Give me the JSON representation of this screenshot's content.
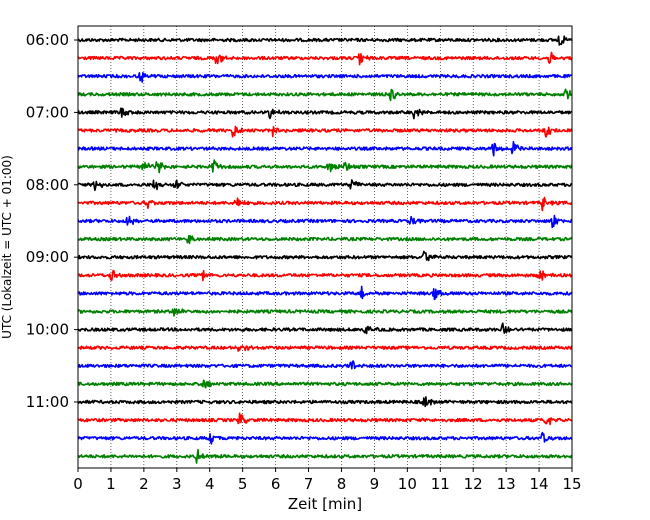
{
  "chart_data": {
    "type": "line",
    "title": "",
    "xlabel": "Zeit  [min]",
    "ylabel": "UTC (Lokalzeit = UTC + 01:00)",
    "xlim": [
      0,
      15
    ],
    "x_ticks": [
      "0",
      "1",
      "2",
      "3",
      "4",
      "5",
      "6",
      "7",
      "8",
      "9",
      "10",
      "11",
      "12",
      "13",
      "14",
      "15"
    ],
    "y_ticks": [
      "06:00",
      "07:00",
      "08:00",
      "09:00",
      "10:00",
      "11:00"
    ],
    "grid": "vertical dotted at each minute",
    "legend": "none",
    "trace_interval_minutes": 15,
    "color_cycle": [
      "#000000",
      "#ff0000",
      "#0000ff",
      "#008000"
    ],
    "series": [
      {
        "start": "06:00",
        "events_min": [
          14.6
        ]
      },
      {
        "start": "06:15",
        "events_min": [
          4.2,
          8.55,
          14.3
        ]
      },
      {
        "start": "06:30",
        "events_min": [
          1.9
        ]
      },
      {
        "start": "06:45",
        "events_min": [
          9.5,
          14.8
        ]
      },
      {
        "start": "07:00",
        "events_min": [
          1.3,
          5.8,
          10.2
        ]
      },
      {
        "start": "07:15",
        "events_min": [
          4.7,
          5.9,
          14.2
        ]
      },
      {
        "start": "07:30",
        "events_min": [
          12.6,
          13.2
        ]
      },
      {
        "start": "07:45",
        "events_min": [
          2.0,
          2.4,
          4.1,
          7.6,
          8.1
        ]
      },
      {
        "start": "08:00",
        "events_min": [
          0.5,
          2.3,
          2.95,
          8.3
        ]
      },
      {
        "start": "08:15",
        "events_min": [
          2.1,
          4.8,
          14.1
        ]
      },
      {
        "start": "08:30",
        "events_min": [
          1.5,
          10.1,
          14.4
        ]
      },
      {
        "start": "08:45",
        "events_min": [
          3.35
        ]
      },
      {
        "start": "09:00",
        "events_min": [
          10.5
        ]
      },
      {
        "start": "09:15",
        "events_min": [
          1.0,
          3.8,
          14.0
        ]
      },
      {
        "start": "09:30",
        "events_min": [
          8.6,
          10.8
        ]
      },
      {
        "start": "09:45",
        "events_min": [
          2.9
        ]
      },
      {
        "start": "10:00",
        "events_min": [
          8.7,
          12.9
        ]
      },
      {
        "start": "10:15",
        "events_min": [
          4.9
        ]
      },
      {
        "start": "10:30",
        "events_min": [
          8.3
        ]
      },
      {
        "start": "10:45",
        "events_min": [
          3.8
        ]
      },
      {
        "start": "11:00",
        "events_min": [
          10.5
        ]
      },
      {
        "start": "11:15",
        "events_min": [
          4.9,
          14.2
        ]
      },
      {
        "start": "11:30",
        "events_min": [
          4.0,
          14.1
        ]
      },
      {
        "start": "11:45",
        "events_min": [
          3.6
        ]
      }
    ]
  }
}
